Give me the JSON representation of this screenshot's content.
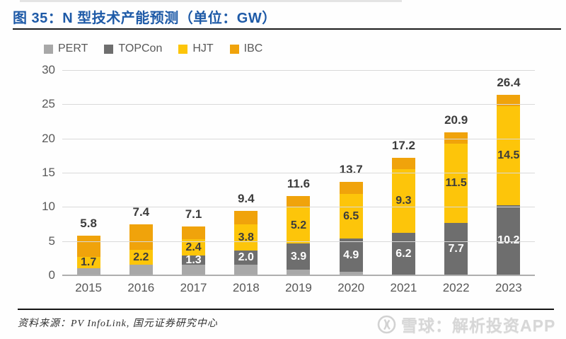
{
  "title": "图 35：N 型技术产能预测（单位：GW）",
  "footer": {
    "source": "资料来源：PV InfoLink, 国元证券研究中心"
  },
  "watermark": {
    "text": "雪球：解析投资APP",
    "logo": "xueqiu-snowball-logo"
  },
  "colors": {
    "title_blue": "#1E5AA7",
    "axis_text": "#595959",
    "gridline": "#D9D9D9",
    "axis_line": "#AEAEAE",
    "pert": "#A8A8A8",
    "topcon": "#6E6E6E",
    "hjt": "#FDC50A",
    "ibc": "#F0A30B",
    "segment_label_dark": "#3C3C3C",
    "segment_label_light": "#FFFFFF",
    "watermark_gray": "#D7D7D7"
  },
  "chart_data": {
    "type": "bar",
    "stacked": true,
    "title": "图 35：N 型技术产能预测（单位：GW）",
    "xlabel": "",
    "ylabel": "GW",
    "ylim": [
      0,
      30
    ],
    "y_ticks": [
      "0",
      "5",
      "10",
      "15",
      "20",
      "25",
      "30"
    ],
    "grid": true,
    "legend_position": "top-left",
    "categories": [
      "2015",
      "2016",
      "2017",
      "2018",
      "2019",
      "2020",
      "2021",
      "2022",
      "2023"
    ],
    "series": [
      {
        "name": "PERT",
        "color": "#A8A8A8",
        "label_color": "",
        "values": [
          1.0,
          1.5,
          1.6,
          1.6,
          0.8,
          0.5,
          0,
          0,
          0
        ],
        "labels": [
          "",
          "",
          "",
          "",
          "",
          "",
          "",
          "",
          ""
        ]
      },
      {
        "name": "TOPCon",
        "color": "#6E6E6E",
        "label_color": "#FFFFFF",
        "values": [
          0,
          0,
          1.3,
          2.0,
          3.9,
          4.9,
          6.2,
          7.7,
          10.2
        ],
        "labels": [
          "",
          "",
          "1.3",
          "2.0",
          "3.9",
          "4.9",
          "6.2",
          "7.7",
          "10.2"
        ]
      },
      {
        "name": "HJT",
        "color": "#FDC50A",
        "label_color": "#3C3C3C",
        "values": [
          1.7,
          2.2,
          2.4,
          3.8,
          5.2,
          6.5,
          9.3,
          11.5,
          14.5
        ],
        "labels": [
          "1.7",
          "2.2",
          "2.4",
          "3.8",
          "5.2",
          "6.5",
          "9.3",
          "11.5",
          "14.5"
        ]
      },
      {
        "name": "IBC",
        "color": "#F0A30B",
        "label_color": "",
        "values": [
          3.1,
          3.7,
          1.8,
          2.0,
          1.7,
          1.8,
          1.7,
          1.7,
          1.7
        ],
        "labels": [
          "",
          "",
          "",
          "",
          "",
          "",
          "",
          "",
          ""
        ]
      }
    ],
    "totals": [
      "5.8",
      "7.4",
      "7.1",
      "9.4",
      "11.6",
      "13.7",
      "17.2",
      "20.9",
      "26.4"
    ]
  }
}
